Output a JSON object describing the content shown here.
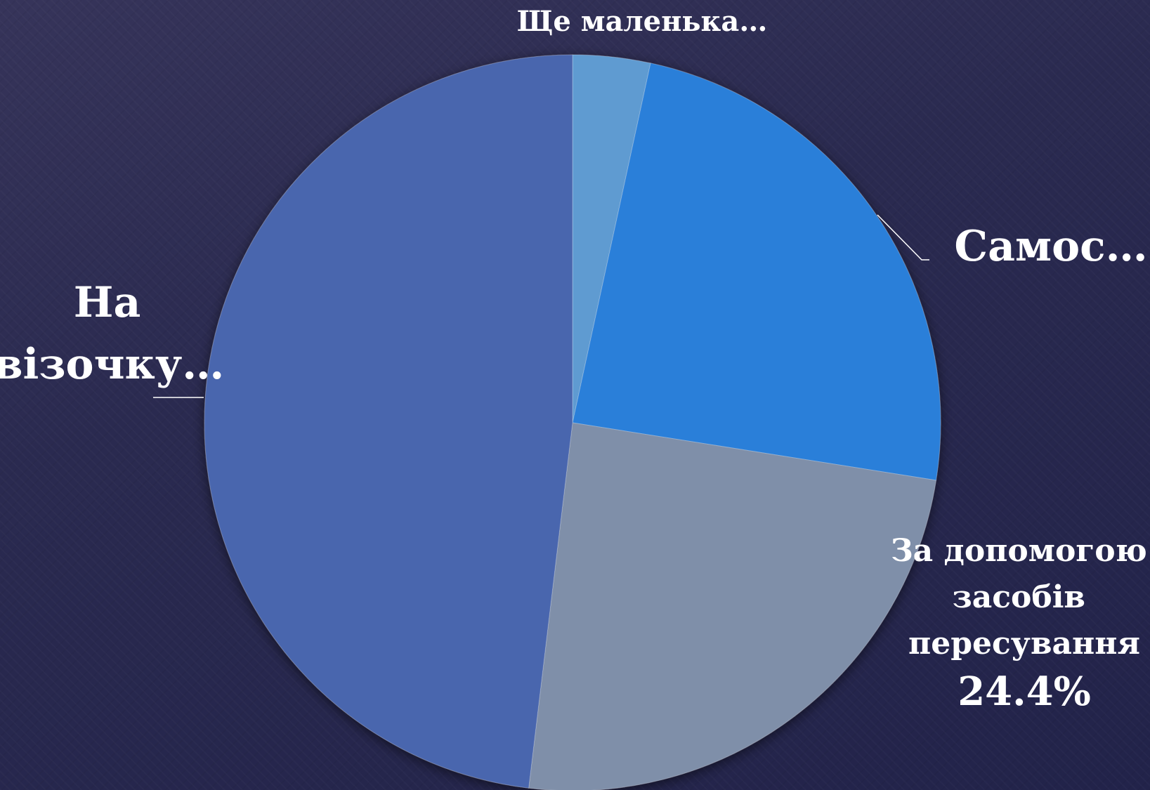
{
  "chart_data": {
    "type": "pie",
    "title": "",
    "slices": [
      {
        "label": "Ще маленька…",
        "value": 3.4,
        "color": "#5f9bd1"
      },
      {
        "label": "Самос…",
        "value": 24.1,
        "color": "#2a7fd9"
      },
      {
        "label": "За допомогою засобів пересування",
        "value": 24.4,
        "value_label": "24.4%",
        "color": "#7f8fa9"
      },
      {
        "label": "На візочку…",
        "value": 48.1,
        "color": "#4966ae"
      }
    ]
  }
}
